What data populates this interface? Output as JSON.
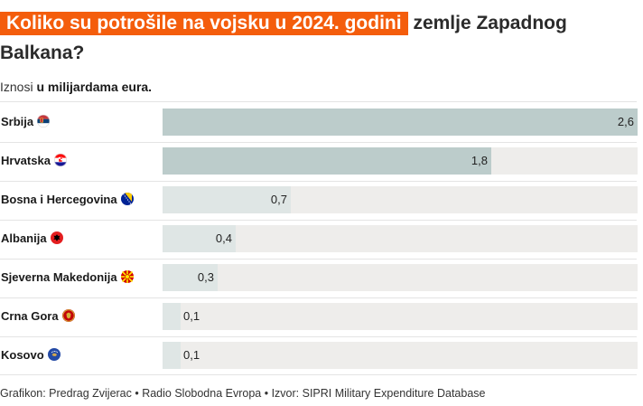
{
  "title_highlight": "Koliko su potrošile na vojsku u 2024. godini",
  "title_rest": "zemlje Zapadnog Balkana?",
  "subtitle_prefix": "Iznosi",
  "subtitle_bold": "u milijardama eura.",
  "footer": "Grafikon: Predrag Zvijerac • Radio Slobodna Evropa • Izvor: SIPRI Military Expenditure Database",
  "colors": {
    "highlight": "#f45d0c",
    "bar_dark": "#bccccb",
    "bar_light": "#dfe6e5",
    "track": "#eeedeb"
  },
  "chart_data": {
    "type": "bar",
    "orientation": "horizontal",
    "xlim": [
      0,
      2.6
    ],
    "categories": [
      "Srbija",
      "Hrvatska",
      "Bosna i Hercegovina",
      "Albanija",
      "Sjeverna Makedonija",
      "Crna Gora",
      "Kosovo"
    ],
    "values": [
      2.6,
      1.8,
      0.7,
      0.4,
      0.3,
      0.1,
      0.1
    ],
    "value_labels": [
      "2,6",
      "1,8",
      "0,7",
      "0,4",
      "0,3",
      "0,1",
      "0,1"
    ],
    "flags": [
      "serbia-flag-icon",
      "croatia-flag-icon",
      "bosnia-flag-icon",
      "albania-flag-icon",
      "north-macedonia-flag-icon",
      "montenegro-flag-icon",
      "kosovo-flag-icon"
    ],
    "legend": "none",
    "grid": false
  }
}
